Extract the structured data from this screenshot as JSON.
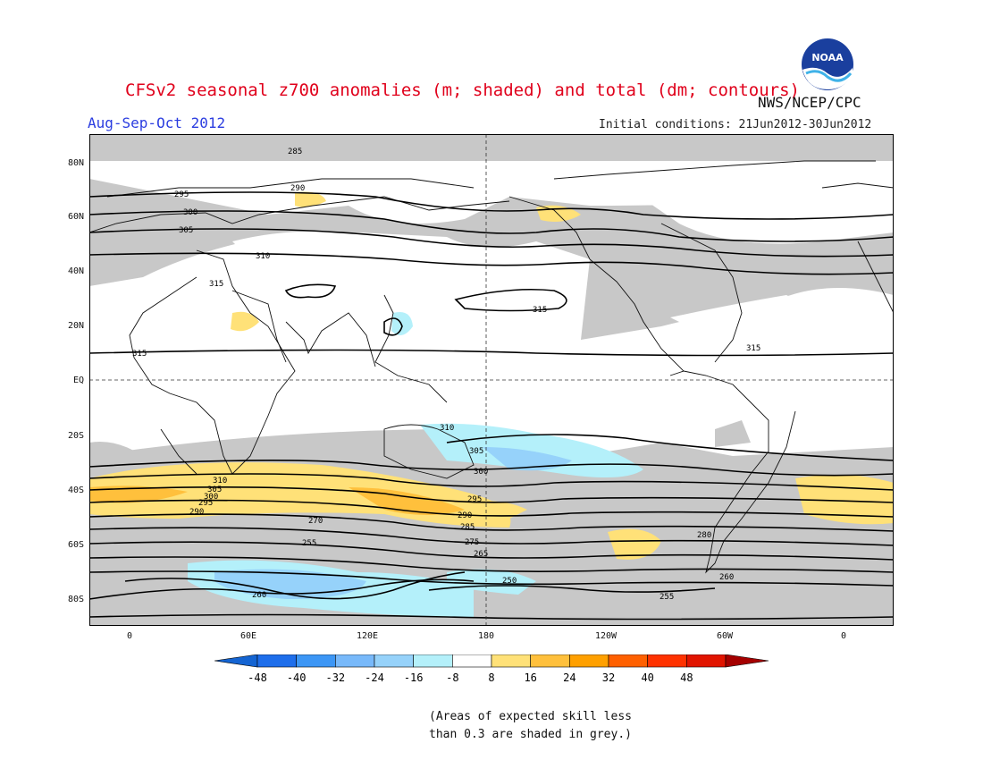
{
  "header": {
    "title": "CFSv2 seasonal z700 anomalies (m; shaded) and total (dm; contours)",
    "agency": "NWS/NCEP/CPC",
    "period": "Aug-Sep-Oct 2012",
    "initial_conditions": "Initial conditions: 21Jun2012-30Jun2012",
    "logo_text": "NOAA"
  },
  "map": {
    "lat_labels": [
      "80N",
      "60N",
      "40N",
      "20N",
      "EQ",
      "20S",
      "40S",
      "60S",
      "80S"
    ],
    "lon_labels": [
      "0",
      "60E",
      "120E",
      "180",
      "120W",
      "60W",
      "0"
    ],
    "contour_labels": [
      "285",
      "290",
      "295",
      "300",
      "305",
      "310",
      "315",
      "315",
      "315",
      "315",
      "310",
      "305",
      "300",
      "295",
      "290",
      "310",
      "305",
      "300",
      "295",
      "290",
      "285",
      "280",
      "275",
      "270",
      "265",
      "260",
      "255",
      "250",
      "260",
      "255"
    ],
    "colors": {
      "grey_skill": "#c8c8c8",
      "neg_light": "#b4f0fa",
      "neg_mid": "#96d2fa",
      "pos_light": "#ffe178",
      "pos_mid": "#ffc03c"
    }
  },
  "colorbar": {
    "labels": [
      "-48",
      "-40",
      "-32",
      "-24",
      "-16",
      "-8",
      "8",
      "16",
      "24",
      "32",
      "40",
      "48"
    ],
    "colors": [
      "#1464d2",
      "#1e6eeb",
      "#3c96f5",
      "#78b9fa",
      "#96d2fa",
      "#b4f0fa",
      "#ffffff",
      "#ffe178",
      "#ffc03c",
      "#ffa000",
      "#ff6000",
      "#ff3200",
      "#e11400",
      "#a50000"
    ]
  },
  "note": {
    "line1": "(Areas of expected skill less",
    "line2": "than 0.3 are shaded in grey.)"
  }
}
